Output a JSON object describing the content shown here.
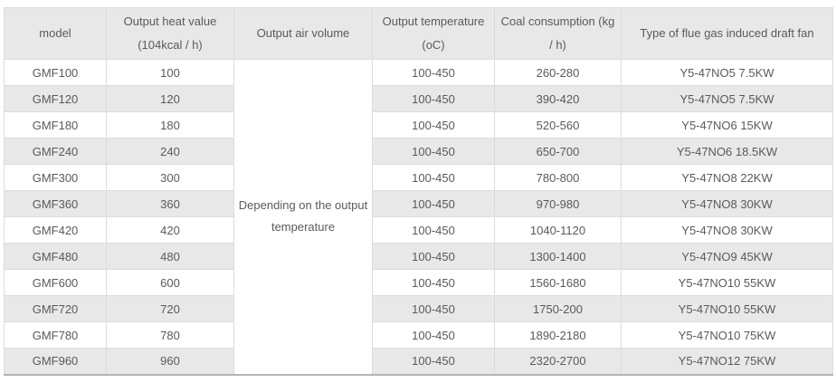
{
  "table": {
    "columns": [
      {
        "key": "model",
        "label_lines": [
          "model"
        ]
      },
      {
        "key": "heat",
        "label_lines": [
          "Output heat value",
          "(104kcal / h)"
        ]
      },
      {
        "key": "air",
        "label_lines": [
          "Output air volume"
        ]
      },
      {
        "key": "temp",
        "label_lines": [
          "Output temperature",
          "(oC)"
        ]
      },
      {
        "key": "coal",
        "label_lines": [
          "Coal consumption (kg",
          "/ h)"
        ]
      },
      {
        "key": "fan",
        "label_lines": [
          "Type of flue gas induced draft fan"
        ]
      }
    ],
    "merged_air_volume_lines": [
      "Depending on the output",
      "temperature"
    ],
    "rows": [
      {
        "model": "GMF100",
        "heat": "100",
        "temp": "100-450",
        "coal": "260-280",
        "fan": "Y5-47NO5 7.5KW"
      },
      {
        "model": "GMF120",
        "heat": "120",
        "temp": "100-450",
        "coal": "390-420",
        "fan": "Y5-47NO5 7.5KW"
      },
      {
        "model": "GMF180",
        "heat": "180",
        "temp": "100-450",
        "coal": "520-560",
        "fan": "Y5-47NO6 15KW"
      },
      {
        "model": "GMF240",
        "heat": "240",
        "temp": "100-450",
        "coal": "650-700",
        "fan": "Y5-47NO6 18.5KW"
      },
      {
        "model": "GMF300",
        "heat": "300",
        "temp": "100-450",
        "coal": "780-800",
        "fan": "Y5-47NO8 22KW"
      },
      {
        "model": "GMF360",
        "heat": "360",
        "temp": "100-450",
        "coal": "970-980",
        "fan": "Y5-47NO8 30KW"
      },
      {
        "model": "GMF420",
        "heat": "420",
        "temp": "100-450",
        "coal": "1040-1120",
        "fan": "Y5-47NO8 30KW"
      },
      {
        "model": "GMF480",
        "heat": "480",
        "temp": "100-450",
        "coal": "1300-1400",
        "fan": "Y5-47NO9 45KW"
      },
      {
        "model": "GMF600",
        "heat": "600",
        "temp": "100-450",
        "coal": "1560-1680",
        "fan": "Y5-47NO10 55KW"
      },
      {
        "model": "GMF720",
        "heat": "720",
        "temp": "100-450",
        "coal": "1750-200",
        "fan": "Y5-47NO10 55KW"
      },
      {
        "model": "GMF780",
        "heat": "780",
        "temp": "100-450",
        "coal": "1890-2180",
        "fan": "Y5-47NO10 75KW"
      },
      {
        "model": "GMF960",
        "heat": "960",
        "temp": "100-450",
        "coal": "2320-2700",
        "fan": "Y5-47NO12 75KW"
      }
    ],
    "colors": {
      "header_bg": "#e8e8e8",
      "stripe_bg": "#e8e8e8",
      "row_bg": "#ffffff",
      "grid_line": "#dcdcdc",
      "bottom_border": "#b3b3b3",
      "text": "#5a5a5a"
    }
  }
}
